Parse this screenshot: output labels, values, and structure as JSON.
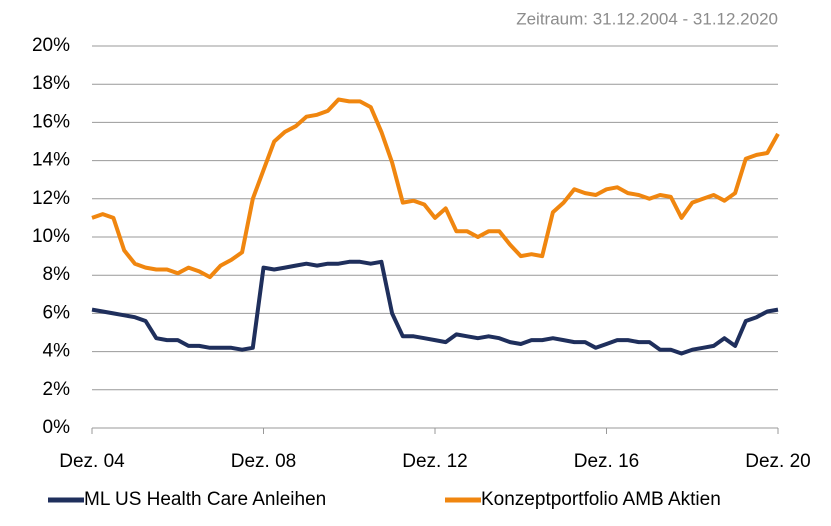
{
  "chart_data": {
    "type": "line",
    "subtitle": "Zeitraum: 31.12.2004 - 31.12.2020",
    "categories": [
      "Dez. 04",
      null,
      null,
      null,
      null,
      null,
      null,
      null,
      null,
      null,
      null,
      null,
      null,
      null,
      null,
      null,
      "Dez. 08",
      null,
      null,
      null,
      null,
      null,
      null,
      null,
      null,
      null,
      null,
      null,
      null,
      null,
      null,
      null,
      "Dez. 12",
      null,
      null,
      null,
      null,
      null,
      null,
      null,
      null,
      null,
      null,
      null,
      null,
      null,
      null,
      null,
      "Dez. 16",
      null,
      null,
      null,
      null,
      null,
      null,
      null,
      null,
      null,
      null,
      null,
      null,
      null,
      null,
      null,
      "Dez. 20"
    ],
    "series": [
      {
        "name": "ML US Health Care Anleihen",
        "color": "#1f2f5c",
        "values": [
          6.2,
          6.1,
          6.0,
          5.9,
          5.8,
          5.6,
          4.7,
          4.6,
          4.6,
          4.3,
          4.3,
          4.2,
          4.2,
          4.2,
          4.1,
          4.2,
          8.4,
          8.3,
          8.4,
          8.5,
          8.6,
          8.5,
          8.6,
          8.6,
          8.7,
          8.7,
          8.6,
          8.7,
          6.0,
          4.8,
          4.8,
          4.7,
          4.6,
          4.5,
          4.9,
          4.8,
          4.7,
          4.8,
          4.7,
          4.5,
          4.4,
          4.6,
          4.6,
          4.7,
          4.6,
          4.5,
          4.5,
          4.2,
          4.4,
          4.6,
          4.6,
          4.5,
          4.5,
          4.1,
          4.1,
          3.9,
          4.1,
          4.2,
          4.3,
          4.7,
          4.3,
          5.6,
          5.8,
          6.1,
          6.2
        ]
      },
      {
        "name": "Konzeptportfolio AMB Aktien",
        "color": "#f0860f",
        "values": [
          11.0,
          11.2,
          11.0,
          9.3,
          8.6,
          8.4,
          8.3,
          8.3,
          8.1,
          8.4,
          8.2,
          7.9,
          8.5,
          8.8,
          9.2,
          12.0,
          13.5,
          15.0,
          15.5,
          15.8,
          16.3,
          16.4,
          16.6,
          17.2,
          17.1,
          17.1,
          16.8,
          15.5,
          13.9,
          11.8,
          11.9,
          11.7,
          11.0,
          11.5,
          10.3,
          10.3,
          10.0,
          10.3,
          10.3,
          9.6,
          9.0,
          9.1,
          9.0,
          11.3,
          11.8,
          12.5,
          12.3,
          12.2,
          12.5,
          12.6,
          12.3,
          12.2,
          12.0,
          12.2,
          12.1,
          11.0,
          11.8,
          12.0,
          12.2,
          11.9,
          12.3,
          14.1,
          14.3,
          14.4,
          15.4
        ]
      }
    ],
    "ylim": [
      0,
      20
    ],
    "yticks": [
      {
        "value": 0,
        "label": "0%"
      },
      {
        "value": 2,
        "label": "2%"
      },
      {
        "value": 4,
        "label": "4%"
      },
      {
        "value": 6,
        "label": "6%"
      },
      {
        "value": 8,
        "label": "8%"
      },
      {
        "value": 10,
        "label": "10%"
      },
      {
        "value": 12,
        "label": "12%"
      },
      {
        "value": 14,
        "label": "14%"
      },
      {
        "value": 16,
        "label": "16%"
      },
      {
        "value": 18,
        "label": "18%"
      },
      {
        "value": 20,
        "label": "20%"
      }
    ],
    "grid": true,
    "legend": "bottom"
  }
}
